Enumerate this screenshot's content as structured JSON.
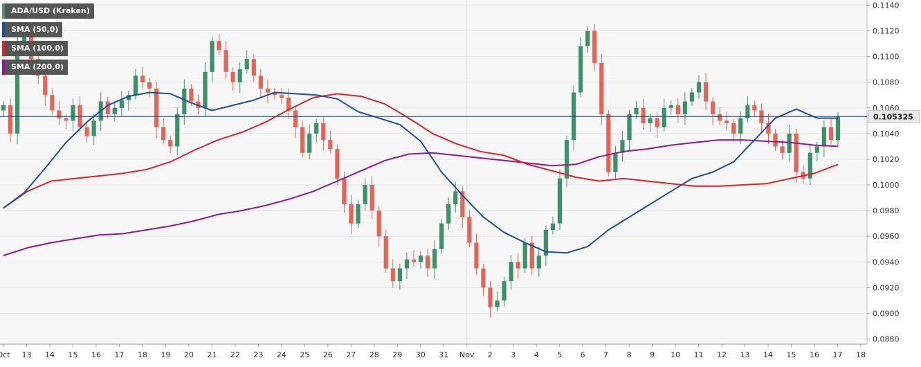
{
  "legend": [
    {
      "label": "ADA/USD (Kraken)",
      "color": "#5a8e78"
    },
    {
      "label": "SMA (50,0)",
      "color": "#1f4e9c"
    },
    {
      "label": "SMA (100,0)",
      "color": "#e3222b"
    },
    {
      "label": "SMA (200,0)",
      "color": "#8a1a9a"
    }
  ],
  "price_badge": "0.105325",
  "colors": {
    "up": "#3f8f6b",
    "down": "#e0665a",
    "sma50": "#1f4e9c",
    "sma100": "#e3222b",
    "sma200": "#8a1a9a",
    "last": "#1d3f72"
  },
  "chart_data": {
    "type": "candlestick",
    "title": "ADA/USD (Kraken)",
    "x_ticks": [
      "Oct",
      "13",
      "14",
      "15",
      "16",
      "17",
      "18",
      "19",
      "20",
      "21",
      "22",
      "23",
      "24",
      "25",
      "26",
      "27",
      "28",
      "29",
      "30",
      "31",
      "Nov",
      "2",
      "3",
      "4",
      "5",
      "6",
      "7",
      "8",
      "9",
      "10",
      "11",
      "12",
      "13",
      "14",
      "15",
      "16",
      "17",
      "18"
    ],
    "y_ticks": [
      "0.1140",
      "0.1120",
      "0.1100",
      "0.1080",
      "0.1060",
      "0.1040",
      "0.1020",
      "0.1000",
      "0.0980",
      "0.0960",
      "0.0940",
      "0.0920",
      "0.0900",
      "0.0880"
    ],
    "ylim": [
      0.0876,
      0.1144
    ],
    "last_price": 0.105325,
    "close_series": [
      0.1062,
      0.104,
      0.1108,
      0.1115,
      0.1098,
      0.1085,
      0.107,
      0.1058,
      0.1052,
      0.105,
      0.1062,
      0.1045,
      0.1038,
      0.105,
      0.1065,
      0.1055,
      0.106,
      0.1066,
      0.107,
      0.1085,
      0.108,
      0.1075,
      0.1045,
      0.1035,
      0.103,
      0.1055,
      0.1075,
      0.1065,
      0.106,
      0.1088,
      0.1112,
      0.1105,
      0.1088,
      0.108,
      0.109,
      0.1098,
      0.1085,
      0.1075,
      0.1072,
      0.107,
      0.1068,
      0.1058,
      0.1045,
      0.1025,
      0.104,
      0.1048,
      0.1035,
      0.1028,
      0.1005,
      0.0985,
      0.097,
      0.0985,
      0.1,
      0.098,
      0.096,
      0.0935,
      0.0925,
      0.0935,
      0.0942,
      0.094,
      0.0945,
      0.0935,
      0.095,
      0.097,
      0.0985,
      0.0995,
      0.0975,
      0.0955,
      0.0935,
      0.092,
      0.0905,
      0.091,
      0.0925,
      0.094,
      0.0935,
      0.0955,
      0.0935,
      0.0945,
      0.0965,
      0.097,
      0.1005,
      0.1035,
      0.1072,
      0.1108,
      0.112,
      0.1095,
      0.1055,
      0.101,
      0.1025,
      0.1035,
      0.1055,
      0.106,
      0.1048,
      0.1052,
      0.1045,
      0.106,
      0.1062,
      0.1055,
      0.1065,
      0.1072,
      0.108,
      0.1065,
      0.1055,
      0.105,
      0.1048,
      0.104,
      0.1052,
      0.1062,
      0.1058,
      0.1048,
      0.104,
      0.103,
      0.1025,
      0.104,
      0.101,
      0.1005,
      0.1025,
      0.103,
      0.1045,
      0.1035,
      0.105325
    ],
    "series": [
      {
        "name": "SMA (50,0)",
        "values": [
          0.0982,
          0.0994,
          0.1013,
          0.1033,
          0.1049,
          0.1062,
          0.1069,
          0.1072,
          0.1071,
          0.1064,
          0.1058,
          0.1062,
          0.1066,
          0.1072,
          0.1071,
          0.107,
          0.1067,
          0.1057,
          0.1052,
          0.1047,
          0.1034,
          0.101,
          0.0992,
          0.0975,
          0.0963,
          0.0955,
          0.0948,
          0.0947,
          0.0952,
          0.0965,
          0.0975,
          0.0985,
          0.0995,
          0.1005,
          0.101,
          0.1018,
          0.1035,
          0.1052,
          0.1059,
          0.1052,
          0.1052
        ]
      },
      {
        "name": "SMA (100,0)",
        "values": [
          0.0982,
          0.0995,
          0.1003,
          0.1005,
          0.1007,
          0.1009,
          0.1012,
          0.1018,
          0.1027,
          0.1035,
          0.1041,
          0.1049,
          0.1059,
          0.1068,
          0.1071,
          0.1069,
          0.1063,
          0.1052,
          0.104,
          0.1032,
          0.1026,
          0.1023,
          0.1016,
          0.1011,
          0.1006,
          0.1003,
          0.1005,
          0.1003,
          0.1001,
          0.0999,
          0.0999,
          0.1,
          0.1001,
          0.1005,
          0.1009,
          0.1016
        ]
      },
      {
        "name": "SMA (200,0)",
        "values": [
          0.0945,
          0.0951,
          0.0955,
          0.0958,
          0.0961,
          0.0962,
          0.0965,
          0.0968,
          0.0972,
          0.0977,
          0.098,
          0.0984,
          0.0989,
          0.0995,
          0.1003,
          0.1011,
          0.1019,
          0.1024,
          0.1025,
          0.1023,
          0.1021,
          0.1019,
          0.1017,
          0.1015,
          0.1016,
          0.1022,
          0.1026,
          0.1028,
          0.1031,
          0.1033,
          0.1035,
          0.1035,
          0.1034,
          0.1033,
          0.1031,
          0.103
        ]
      }
    ]
  }
}
